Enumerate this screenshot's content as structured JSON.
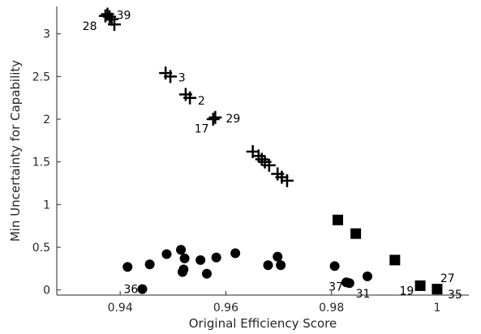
{
  "chart_data": {
    "type": "scatter",
    "xlabel": "Original Efficiency Score",
    "ylabel": "Min Uncertainty for Capability",
    "xlim": [
      0.928,
      1.006
    ],
    "ylim": [
      -0.06,
      3.32
    ],
    "xticks": [
      0.94,
      0.96,
      0.98,
      1
    ],
    "xtick_labels": [
      "0.94",
      "0.96",
      "0.98",
      "1"
    ],
    "yticks": [
      0,
      0.5,
      1,
      1.5,
      2,
      2.5,
      3
    ],
    "ytick_labels": [
      "0",
      "0.5",
      "1",
      "1.5",
      "2",
      "2.5",
      "3"
    ],
    "grid": false,
    "series": [
      {
        "marker": "plus",
        "color": "#000000",
        "points": [
          {
            "x": 0.9372,
            "y": 3.21
          },
          {
            "x": 0.9376,
            "y": 3.23
          },
          {
            "x": 0.938,
            "y": 3.2
          },
          {
            "x": 0.9384,
            "y": 3.17
          },
          {
            "x": 0.9389,
            "y": 3.11
          },
          {
            "x": 0.9486,
            "y": 2.54
          },
          {
            "x": 0.9495,
            "y": 2.5
          },
          {
            "x": 0.9524,
            "y": 2.29
          },
          {
            "x": 0.9532,
            "y": 2.25
          },
          {
            "x": 0.9576,
            "y": 2.0
          },
          {
            "x": 0.958,
            "y": 2.02
          },
          {
            "x": 0.9651,
            "y": 1.62
          },
          {
            "x": 0.9662,
            "y": 1.57
          },
          {
            "x": 0.9668,
            "y": 1.53
          },
          {
            "x": 0.9674,
            "y": 1.5
          },
          {
            "x": 0.9682,
            "y": 1.46
          },
          {
            "x": 0.9698,
            "y": 1.36
          },
          {
            "x": 0.9706,
            "y": 1.32
          },
          {
            "x": 0.9716,
            "y": 1.28
          }
        ]
      },
      {
        "marker": "square",
        "color": "#000000",
        "points": [
          {
            "x": 0.9812,
            "y": 0.82
          },
          {
            "x": 0.9846,
            "y": 0.66
          },
          {
            "x": 0.992,
            "y": 0.35
          },
          {
            "x": 0.9968,
            "y": 0.05
          },
          {
            "x": 1.0,
            "y": 0.01
          }
        ]
      },
      {
        "marker": "circle",
        "color": "#000000",
        "points": [
          {
            "x": 0.9414,
            "y": 0.27
          },
          {
            "x": 0.9442,
            "y": 0.01
          },
          {
            "x": 0.9456,
            "y": 0.3
          },
          {
            "x": 0.9488,
            "y": 0.42
          },
          {
            "x": 0.9515,
            "y": 0.47
          },
          {
            "x": 0.9518,
            "y": 0.21
          },
          {
            "x": 0.952,
            "y": 0.24
          },
          {
            "x": 0.9522,
            "y": 0.37
          },
          {
            "x": 0.9552,
            "y": 0.35
          },
          {
            "x": 0.9564,
            "y": 0.19
          },
          {
            "x": 0.9582,
            "y": 0.38
          },
          {
            "x": 0.9618,
            "y": 0.43
          },
          {
            "x": 0.968,
            "y": 0.29
          },
          {
            "x": 0.9698,
            "y": 0.39
          },
          {
            "x": 0.9704,
            "y": 0.29
          },
          {
            "x": 0.9806,
            "y": 0.28
          },
          {
            "x": 0.9828,
            "y": 0.09
          },
          {
            "x": 0.9834,
            "y": 0.08
          },
          {
            "x": 0.9868,
            "y": 0.16
          }
        ]
      }
    ],
    "annotations": [
      {
        "text": "39",
        "x": 0.9393,
        "y": 3.22,
        "anchor": "start"
      },
      {
        "text": "28",
        "x": 0.9356,
        "y": 3.09,
        "anchor": "end"
      },
      {
        "text": "3",
        "x": 0.951,
        "y": 2.49,
        "anchor": "start"
      },
      {
        "text": "2",
        "x": 0.9547,
        "y": 2.22,
        "anchor": "start"
      },
      {
        "text": "29",
        "x": 0.96,
        "y": 2.01,
        "anchor": "start"
      },
      {
        "text": "17",
        "x": 0.9568,
        "y": 1.89,
        "anchor": "end"
      },
      {
        "text": "36",
        "x": 0.9434,
        "y": 0.01,
        "anchor": "end"
      },
      {
        "text": "37",
        "x": 0.9822,
        "y": 0.04,
        "anchor": "end"
      },
      {
        "text": "31",
        "x": 0.9846,
        "y": -0.04,
        "anchor": "start"
      },
      {
        "text": "27",
        "x": 1.0006,
        "y": 0.14,
        "anchor": "start"
      },
      {
        "text": "19",
        "x": 0.9956,
        "y": -0.01,
        "anchor": "end"
      },
      {
        "text": "35",
        "x": 1.002,
        "y": -0.05,
        "anchor": "start"
      }
    ]
  }
}
